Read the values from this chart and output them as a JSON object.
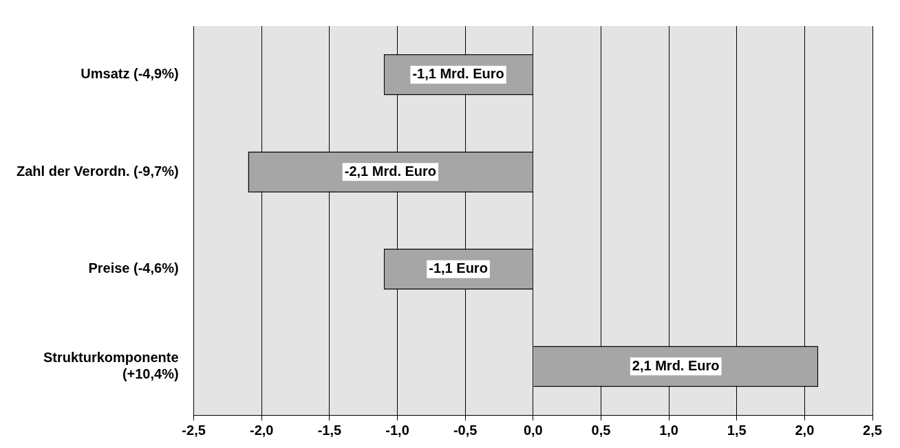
{
  "chart_data": {
    "type": "bar",
    "orientation": "horizontal",
    "categories": [
      "Umsatz (-4,9%)",
      "Zahl der Verordn. (-9,7%)",
      "Preise (-4,6%)",
      "Strukturkomponente (+10,4%)"
    ],
    "values": [
      -1.1,
      -2.1,
      -1.1,
      2.1
    ],
    "value_labels": [
      "-1,1 Mrd. Euro",
      "-2,1 Mrd. Euro",
      "-1,1 Euro",
      "2,1 Mrd. Euro"
    ],
    "color": "#a6a6a6",
    "xlim": [
      -2.5,
      2.5
    ],
    "xticks": [
      {
        "value": -2.5,
        "label": "-2,5"
      },
      {
        "value": -2,
        "label": "-2,0"
      },
      {
        "value": -1.5,
        "label": "-1,5"
      },
      {
        "value": -1,
        "label": "-1,0"
      },
      {
        "value": -0.5,
        "label": "-0,5"
      },
      {
        "value": 0,
        "label": "0,0"
      },
      {
        "value": 0.5,
        "label": "0,5"
      },
      {
        "value": 1,
        "label": "1,0"
      },
      {
        "value": 1.5,
        "label": "1,5"
      },
      {
        "value": 2,
        "label": "2,0"
      },
      {
        "value": 2.5,
        "label": "2,5"
      }
    ],
    "grid": "x"
  }
}
